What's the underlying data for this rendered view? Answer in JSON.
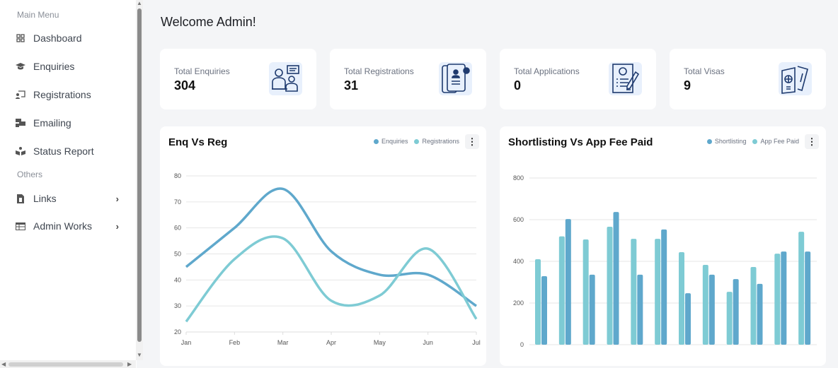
{
  "sidebar": {
    "main_menu_label": "Main Menu",
    "others_label": "Others",
    "items": [
      {
        "label": "Dashboard",
        "icon": "grid-icon"
      },
      {
        "label": "Enquiries",
        "icon": "graduation-cap-icon"
      },
      {
        "label": "Registrations",
        "icon": "chalkboard-user-icon"
      },
      {
        "label": "Emailing",
        "icon": "mail-bulk-icon"
      },
      {
        "label": "Status Report",
        "icon": "book-reader-icon"
      },
      {
        "label": "Links",
        "icon": "file-invoice-icon",
        "expandable": true
      },
      {
        "label": "Admin Works",
        "icon": "table-icon",
        "expandable": true
      }
    ]
  },
  "header": {
    "title": "Welcome Admin!"
  },
  "stats": [
    {
      "label": "Total Enquiries",
      "value": "304",
      "icon": "receptionist-icon"
    },
    {
      "label": "Total Registrations",
      "value": "31",
      "icon": "id-document-icon"
    },
    {
      "label": "Total Applications",
      "value": "0",
      "icon": "application-form-icon"
    },
    {
      "label": "Total Visas",
      "value": "9",
      "icon": "passport-icon"
    }
  ],
  "colors": {
    "dark": "#5fa8cc",
    "light": "#7ecbd4",
    "icon": "#1e3a6e"
  },
  "chart_data": [
    {
      "type": "line",
      "title": "Enq Vs Reg",
      "smooth": true,
      "legend": "top-right",
      "categories": [
        "Jan",
        "Feb",
        "Mar",
        "Apr",
        "May",
        "Jun",
        "Jul"
      ],
      "ylim": [
        20,
        80
      ],
      "yticks": [
        20,
        30,
        40,
        50,
        60,
        70,
        80
      ],
      "grid": true,
      "series": [
        {
          "name": "Enquiries",
          "color": "#5fa8cc",
          "values": [
            45,
            60,
            75,
            51,
            42,
            42,
            30
          ]
        },
        {
          "name": "Registrations",
          "color": "#7ecbd4",
          "values": [
            24,
            48,
            56,
            32,
            34,
            52,
            25
          ]
        }
      ]
    },
    {
      "type": "bar",
      "title": "Shortlisting Vs App Fee Paid",
      "legend": "top-right",
      "ylim": [
        0,
        800
      ],
      "yticks": [
        0,
        200,
        400,
        600,
        800
      ],
      "grid": true,
      "series": [
        {
          "name": "Shortlisting",
          "color": "#5fa8cc",
          "values": [
            329,
            603,
            336,
            637,
            336,
            553,
            247,
            336,
            315,
            292,
            447,
            447
          ]
        },
        {
          "name": "App Fee Paid",
          "color": "#7ecbd4",
          "values": [
            410,
            520,
            505,
            566,
            508,
            508,
            444,
            383,
            254,
            373,
            437,
            542
          ]
        }
      ]
    }
  ]
}
